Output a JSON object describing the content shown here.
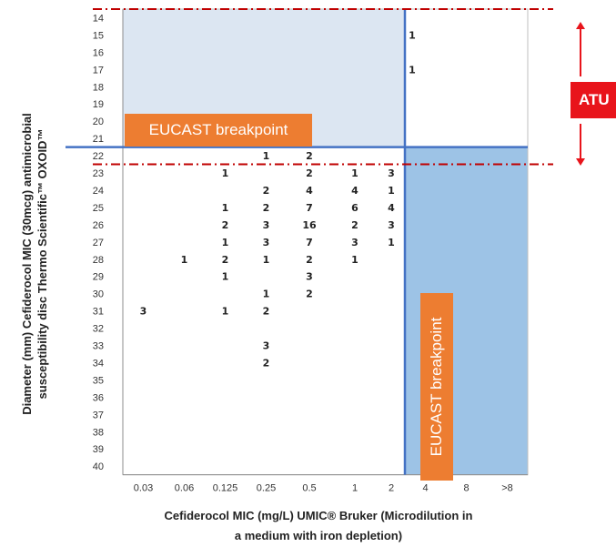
{
  "chart_data": {
    "type": "table",
    "x_categories": [
      "0.03",
      "0.06",
      "0.125",
      "0.25",
      "0.5",
      "1",
      "2",
      "4",
      "8",
      ">8"
    ],
    "y_categories": [
      "14",
      "15",
      "16",
      "17",
      "18",
      "19",
      "20",
      "21",
      "22",
      "23",
      "24",
      "25",
      "26",
      "27",
      "28",
      "29",
      "30",
      "31",
      "32",
      "33",
      "34",
      "35",
      "36",
      "37",
      "38",
      "39",
      "40"
    ],
    "xlabel_lines": [
      "Cefiderocol MIC (mg/L) UMIC® Bruker (Microdilution in",
      "a medium with iron depletion)"
    ],
    "ylabel_lines": [
      "Diameter (mm) Cefiderocol MIC (30mcg) antimicrobial",
      "susceptibility disc Thermo Scientific™ OXOID™"
    ],
    "cells": [
      {
        "x": "4",
        "y": "15",
        "n": "1"
      },
      {
        "x": "4",
        "y": "17",
        "n": "1"
      },
      {
        "x": "0.25",
        "y": "22",
        "n": "1"
      },
      {
        "x": "0.5",
        "y": "22",
        "n": "2"
      },
      {
        "x": "0.125",
        "y": "23",
        "n": "1"
      },
      {
        "x": "0.5",
        "y": "23",
        "n": "2"
      },
      {
        "x": "1",
        "y": "23",
        "n": "1"
      },
      {
        "x": "2",
        "y": "23",
        "n": "3"
      },
      {
        "x": "0.25",
        "y": "24",
        "n": "2"
      },
      {
        "x": "0.5",
        "y": "24",
        "n": "4"
      },
      {
        "x": "1",
        "y": "24",
        "n": "4"
      },
      {
        "x": "2",
        "y": "24",
        "n": "1"
      },
      {
        "x": "0.125",
        "y": "25",
        "n": "1"
      },
      {
        "x": "0.25",
        "y": "25",
        "n": "2"
      },
      {
        "x": "0.5",
        "y": "25",
        "n": "7"
      },
      {
        "x": "1",
        "y": "25",
        "n": "6"
      },
      {
        "x": "2",
        "y": "25",
        "n": "4"
      },
      {
        "x": "0.125",
        "y": "26",
        "n": "2"
      },
      {
        "x": "0.25",
        "y": "26",
        "n": "3"
      },
      {
        "x": "0.5",
        "y": "26",
        "n": "16"
      },
      {
        "x": "1",
        "y": "26",
        "n": "2"
      },
      {
        "x": "2",
        "y": "26",
        "n": "3"
      },
      {
        "x": "0.125",
        "y": "27",
        "n": "1"
      },
      {
        "x": "0.25",
        "y": "27",
        "n": "3"
      },
      {
        "x": "0.5",
        "y": "27",
        "n": "7"
      },
      {
        "x": "1",
        "y": "27",
        "n": "3"
      },
      {
        "x": "2",
        "y": "27",
        "n": "1"
      },
      {
        "x": "0.06",
        "y": "28",
        "n": "1"
      },
      {
        "x": "0.125",
        "y": "28",
        "n": "2"
      },
      {
        "x": "0.25",
        "y": "28",
        "n": "1"
      },
      {
        "x": "0.5",
        "y": "28",
        "n": "2"
      },
      {
        "x": "1",
        "y": "28",
        "n": "1"
      },
      {
        "x": "0.125",
        "y": "29",
        "n": "1"
      },
      {
        "x": "0.5",
        "y": "29",
        "n": "3"
      },
      {
        "x": "0.25",
        "y": "30",
        "n": "1"
      },
      {
        "x": "0.5",
        "y": "30",
        "n": "2"
      },
      {
        "x": "0.03",
        "y": "31",
        "n": "3"
      },
      {
        "x": "0.125",
        "y": "31",
        "n": "1"
      },
      {
        "x": "0.25",
        "y": "31",
        "n": "2"
      },
      {
        "x": "0.25",
        "y": "33",
        "n": "3"
      },
      {
        "x": "0.25",
        "y": "34",
        "n": "2"
      }
    ],
    "breakpoints": {
      "mic_between": [
        "2",
        "4"
      ],
      "diameter_between": [
        "21",
        "22"
      ],
      "label": "EUCAST breakpoint"
    },
    "atu": {
      "label": "ATU",
      "diameter_between": [
        [
          "13",
          "14"
        ],
        [
          "22",
          "23"
        ]
      ]
    },
    "colors": {
      "light_region": "#DCE6F2",
      "dark_region": "#9DC3E6",
      "breakpoint_line": "#4472C4",
      "atu_line": "#C00000",
      "label_box": "#ED7D31",
      "atu_box": "#E8141B"
    }
  }
}
